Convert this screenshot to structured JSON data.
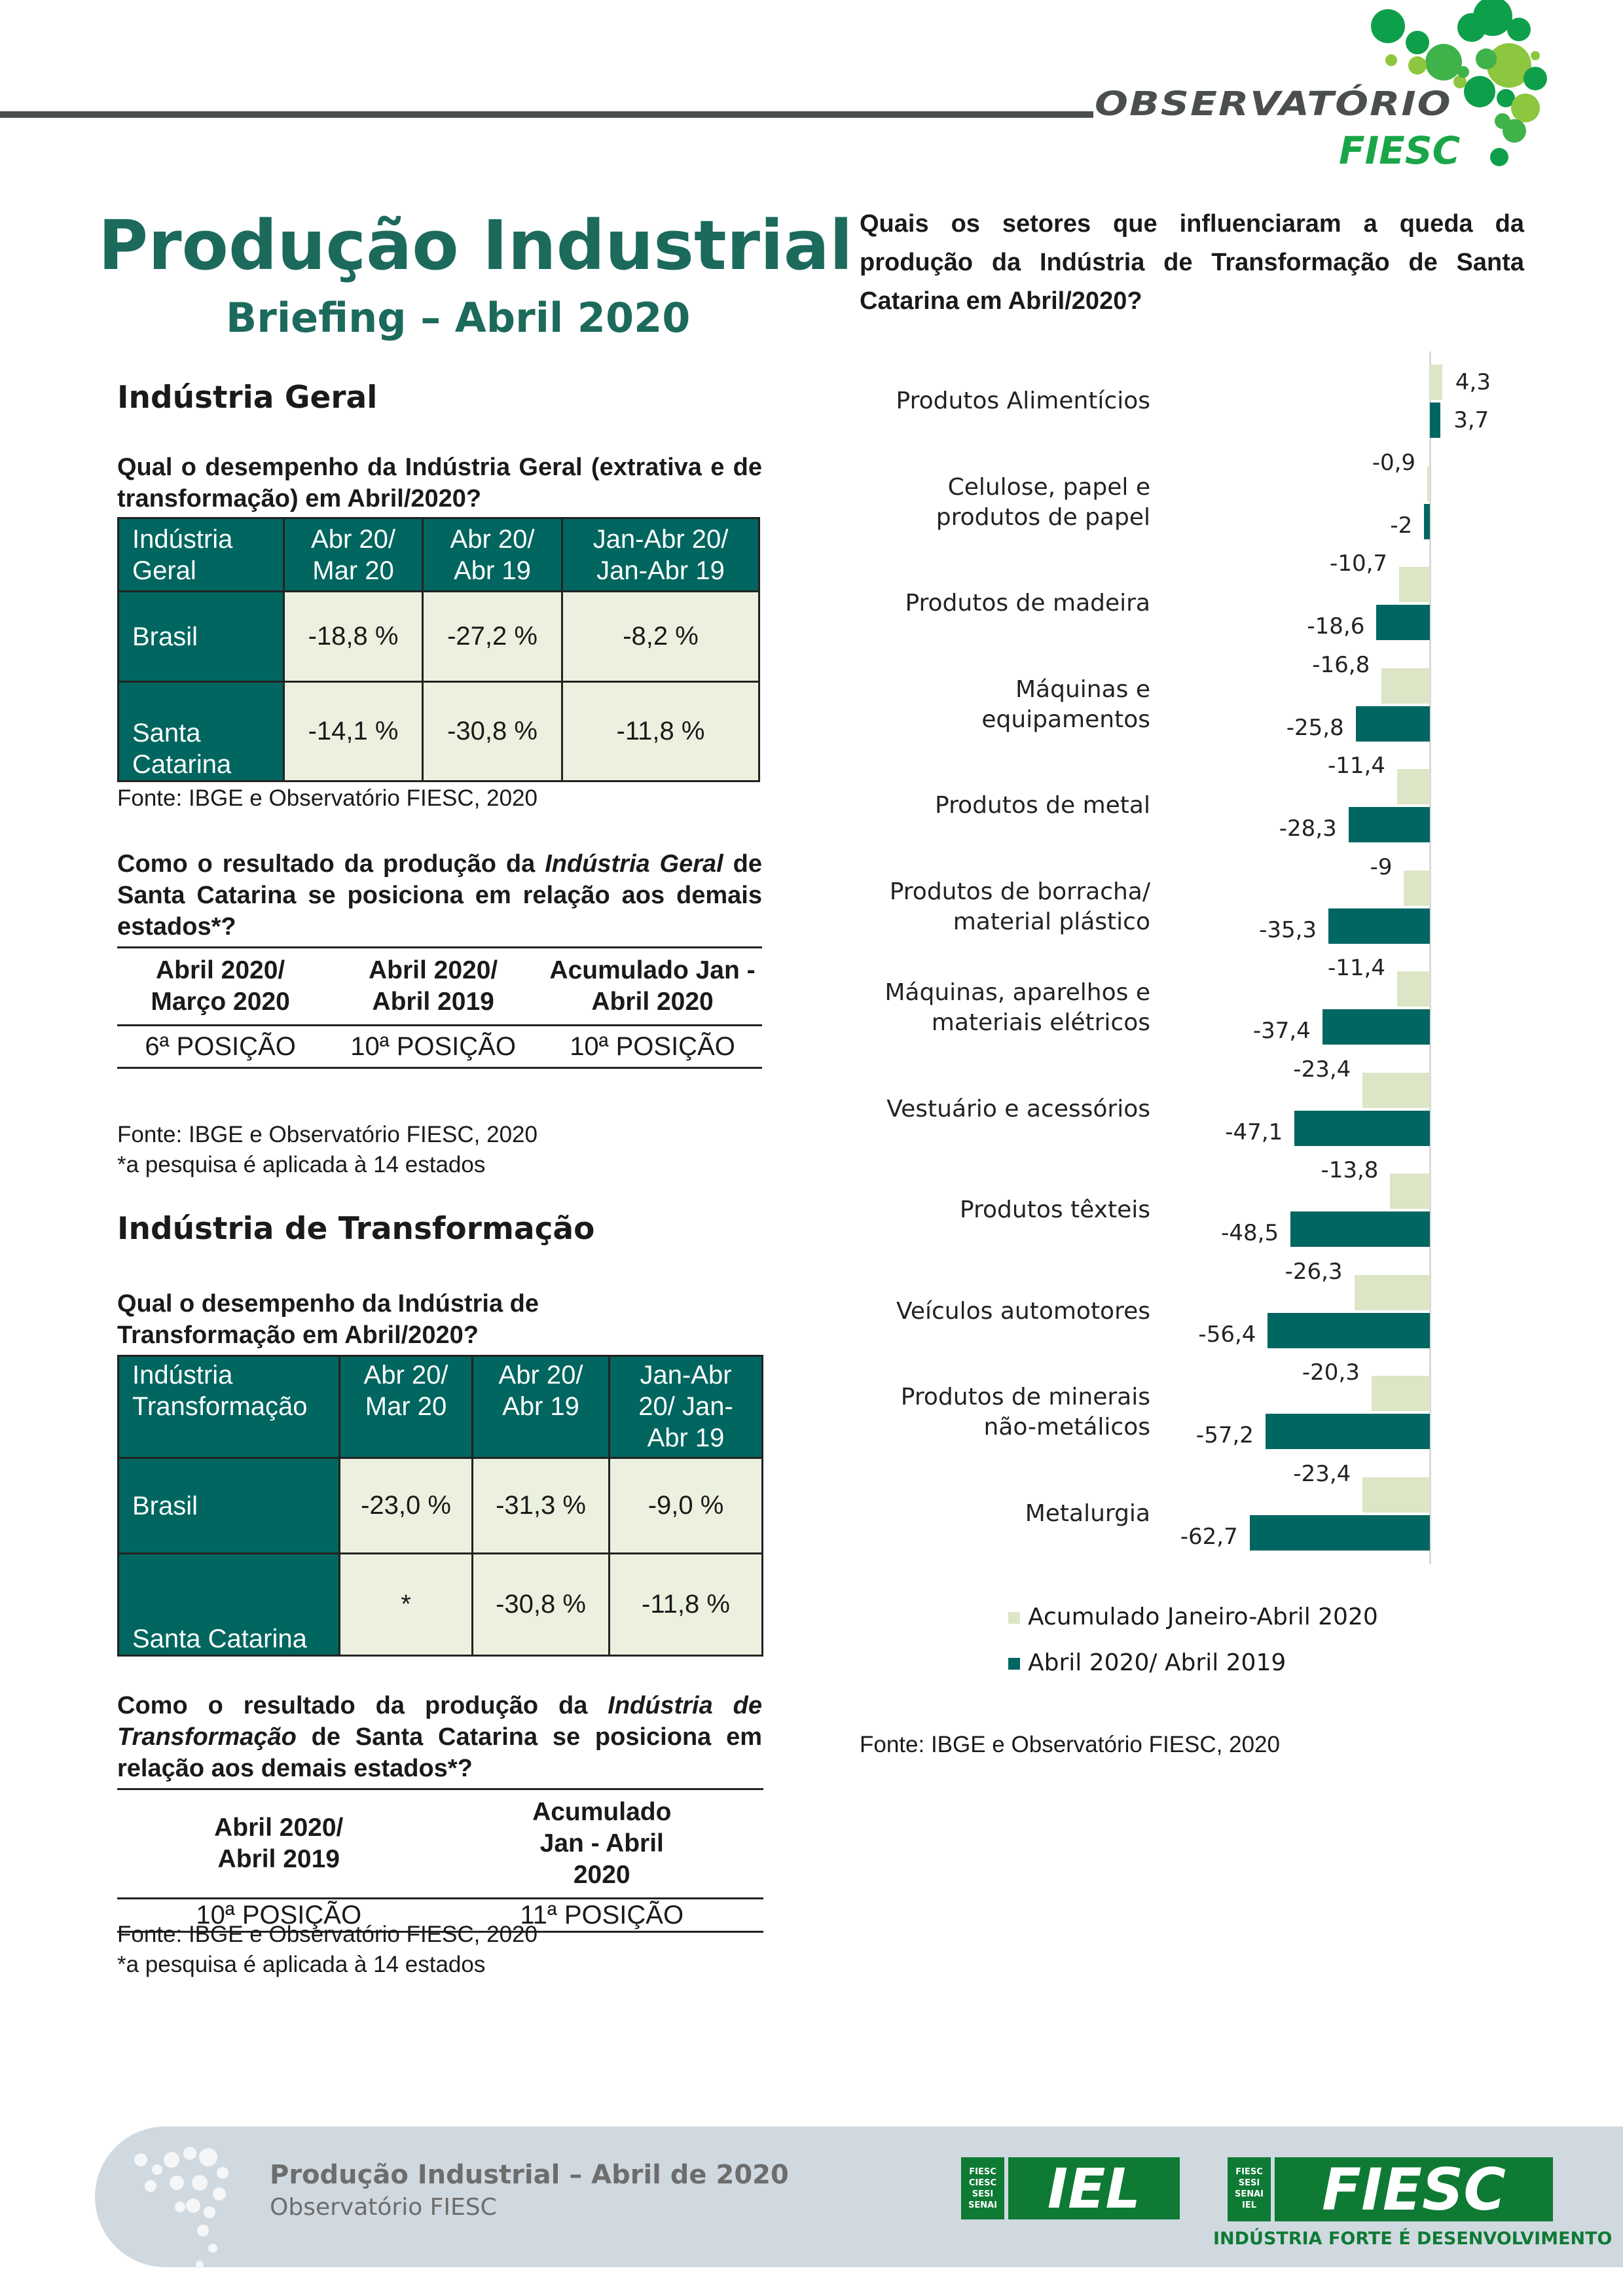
{
  "header": {
    "logo_text": "OBSERVATÓRIO",
    "logo_sub": "FIESC"
  },
  "title": "Produção Industrial",
  "subtitle": "Briefing – Abril 2020",
  "geral": {
    "heading": "Indústria Geral",
    "question": "Qual o desempenho da Indústria Geral (extrativa e de transformação) em Abril/2020?",
    "table": {
      "headers": [
        "Indústria Geral",
        "Abr 20/ Mar 20",
        "Abr 20/ Abr 19",
        "Jan-Abr 20/ Jan-Abr 19"
      ],
      "rows": [
        [
          "Brasil",
          "-18,8 %",
          "-27,2 %",
          "-8,2 %"
        ],
        [
          "Santa Catarina",
          "-14,1  %",
          "-30,8 %",
          "-11,8 %"
        ]
      ]
    },
    "source": "Fonte: IBGE e Observatório FIESC, 2020",
    "rank_q_a": "Como o resultado da produção da ",
    "rank_q_b": "Indústria Geral",
    "rank_q_c": " de Santa Catarina se posiciona em relação aos demais estados*?",
    "rank": {
      "headers": [
        "Abril 2020/ Março 2020",
        "Abril 2020/ Abril 2019",
        "Acumulado Jan - Abril 2020"
      ],
      "values": [
        "6ª  POSIÇÃO",
        "10ª POSIÇÃO",
        "10ª POSIÇÃO"
      ]
    },
    "rank_source": "Fonte: IBGE e Observatório FIESC, 2020",
    "rank_note": "*a pesquisa é aplicada à 14 estados"
  },
  "transf": {
    "heading": "Indústria de Transformação",
    "question": "Qual o desempenho da Indústria de Transformação em Abril/2020?",
    "table": {
      "headers": [
        "Indústria Transformação",
        "Abr 20/ Mar 20",
        "Abr 20/ Abr 19",
        "Jan-Abr 20/ Jan-Abr 19"
      ],
      "rows": [
        [
          "Brasil",
          "-23,0 %",
          "-31,3 %",
          "-9,0 %"
        ],
        [
          "Santa Catarina",
          "*",
          "-30,8 %",
          "-11,8 %"
        ]
      ]
    },
    "rank_q_a": "Como o resultado da produção da ",
    "rank_q_b": "Indústria de Transformação",
    "rank_q_c": " de Santa Catarina se posiciona em relação aos demais estados*?",
    "rank": {
      "headers": [
        "Abril 2020/ Abril 2019",
        "Acumulado Jan - Abril 2020"
      ],
      "values": [
        "10ª POSIÇÃO",
        "11ª POSIÇÃO"
      ]
    },
    "rank_source": "Fonte: IBGE e Observatório FIESC, 2020",
    "rank_note": "*a pesquisa é aplicada à 14 estados"
  },
  "chart_question": "Quais os setores que influenciaram a queda da produção da Indústria de Transformação de Santa Catarina em Abril/2020?",
  "chart_data": {
    "type": "bar",
    "orientation": "horizontal",
    "categories": [
      "Produtos Alimentícios",
      "Celulose, papel e produtos de papel",
      "Produtos de madeira",
      "Máquinas e equipamentos",
      "Produtos de metal",
      "Produtos de borracha/ material plástico",
      "Máquinas, aparelhos e materiais elétricos",
      "Vestuário e acessórios",
      "Produtos têxteis",
      "Veículos automotores",
      "Produtos de minerais não-metálicos",
      "Metalurgia"
    ],
    "series": [
      {
        "name": "Acumulado Janeiro-Abril 2020",
        "color": "#dce6c6",
        "values": [
          4.3,
          -0.9,
          -10.7,
          -16.8,
          -11.4,
          -9,
          -11.4,
          -23.4,
          -13.8,
          -26.3,
          -20.3,
          -23.4
        ],
        "labels": [
          "4,3",
          "-0,9",
          "-10,7",
          "-16,8",
          "-11,4",
          "-9",
          "-11,4",
          "-23,4",
          "-13,8",
          "-26,3",
          "-20,3",
          "-23,4"
        ]
      },
      {
        "name": "Abril 2020/ Abril 2019",
        "color": "#006661",
        "values": [
          3.7,
          -2,
          -18.6,
          -25.8,
          -28.3,
          -35.3,
          -37.4,
          -47.1,
          -48.5,
          -56.4,
          -57.2,
          -62.7
        ],
        "labels": [
          "3,7",
          "-2",
          "-18,6",
          "-25,8",
          "-28,3",
          "-35,3",
          "-37,4",
          "-47,1",
          "-48,5",
          "-56,4",
          "-57,2",
          "-62,7"
        ]
      }
    ],
    "legend_position": "bottom",
    "grid": false
  },
  "chart_source": "Fonte: IBGE e Observatório FIESC, 2020",
  "footer": {
    "title": "Produção Industrial – Abril de 2020",
    "subtitle": "Observatório FIESC",
    "iel": "IEL",
    "fiesc": "FIESC",
    "entities": [
      "FIESC",
      "CIESC",
      "SESI",
      "SENAI",
      "IEL"
    ],
    "tagline": "INDÚSTRIA FORTE É DESENVOLVIMENTO"
  },
  "colors": {
    "teal": "#00665f",
    "title": "#1c6a5c",
    "cell": "#ebf1de",
    "green": "#0e7a34"
  }
}
